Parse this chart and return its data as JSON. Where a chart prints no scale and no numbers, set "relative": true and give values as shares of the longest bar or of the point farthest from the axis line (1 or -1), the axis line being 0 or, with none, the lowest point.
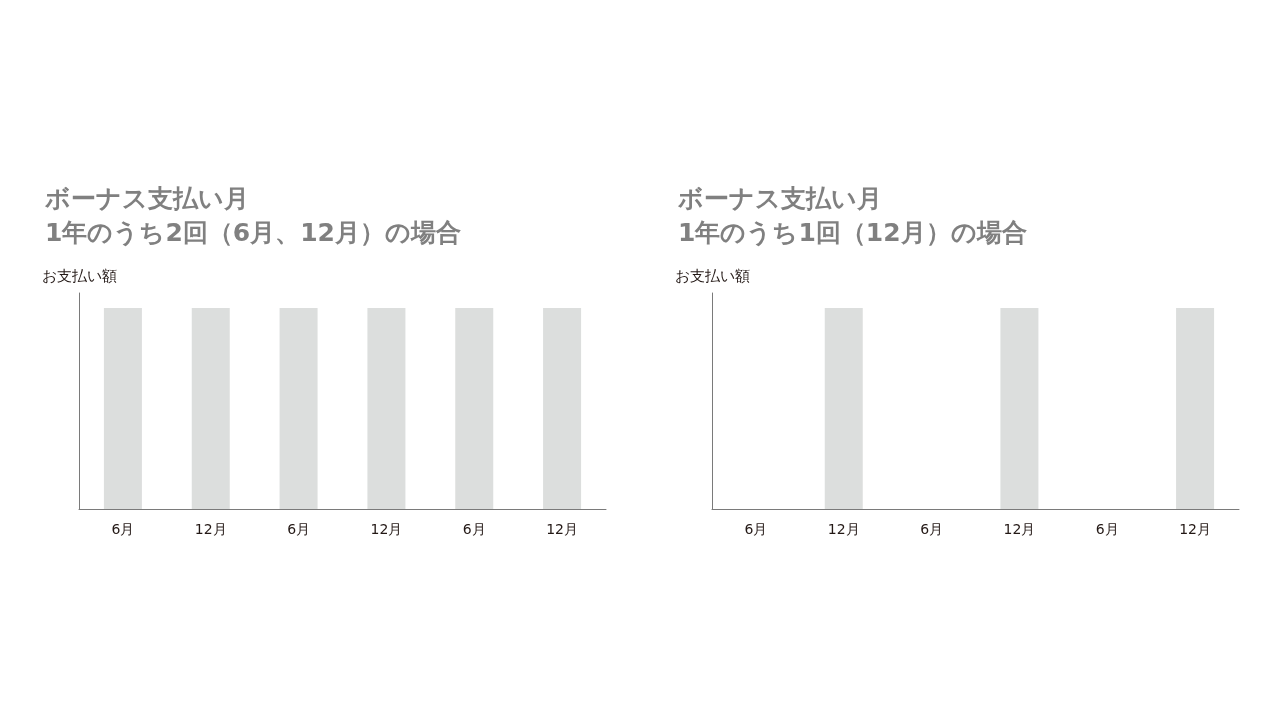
{
  "chart_data": [
    {
      "type": "bar",
      "title": "ボーナス支払い月",
      "subtitle": "1年のうち2回（6月、12月）の場合",
      "ylabel": "お支払い額",
      "categories": [
        "6月",
        "12月",
        "6月",
        "12月",
        "6月",
        "12月"
      ],
      "values": [
        1,
        1,
        1,
        1,
        1,
        1
      ],
      "color": "#dcdedd",
      "relative": true
    },
    {
      "type": "bar",
      "title": "ボーナス支払い月",
      "subtitle": "1年のうち1回（12月）の場合",
      "ylabel": "お支払い額",
      "categories": [
        "6月",
        "12月",
        "6月",
        "12月",
        "6月",
        "12月"
      ],
      "values": [
        0,
        1,
        0,
        1,
        0,
        1
      ],
      "color": "#dcdedd",
      "relative": true
    }
  ]
}
